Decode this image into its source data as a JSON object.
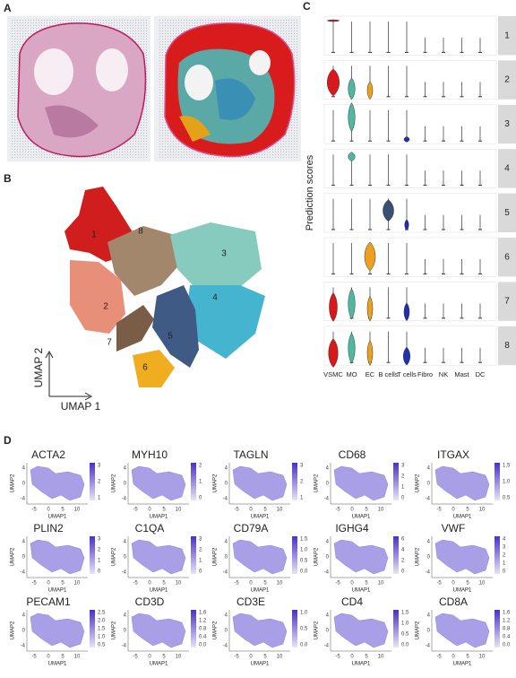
{
  "panels": {
    "a": "A",
    "b": "B",
    "c": "C",
    "d": "D"
  },
  "umap": {
    "x_label": "UMAP 1",
    "y_label": "UMAP 2",
    "clusters": [
      "1",
      "2",
      "3",
      "4",
      "5",
      "6",
      "7",
      "8"
    ]
  },
  "violin": {
    "y_label": "Prediction scores",
    "cell_types": [
      "VSMC",
      "MO",
      "EC",
      "B cells",
      "T cells",
      "Fibro",
      "NK",
      "Mast",
      "DC"
    ],
    "clusters": [
      "1",
      "2",
      "3",
      "4",
      "5",
      "6",
      "7",
      "8"
    ]
  },
  "feature_axes": {
    "x_label": "UMAP1",
    "y_label": "UMAP2",
    "x_ticks": [
      "-5",
      "0",
      "5",
      "10"
    ],
    "y_ticks": [
      "4",
      "0",
      "-4"
    ]
  },
  "features": [
    {
      "gene": "ACTA2",
      "colorbar": [
        "3",
        "2",
        "1"
      ]
    },
    {
      "gene": "MYH10",
      "colorbar": [
        "2",
        "1",
        "0"
      ]
    },
    {
      "gene": "TAGLN",
      "colorbar": [
        "3",
        "2",
        "1"
      ]
    },
    {
      "gene": "CD68",
      "colorbar": [
        "3",
        "2",
        "1",
        "0"
      ]
    },
    {
      "gene": "ITGAX",
      "colorbar": [
        "1.5",
        "1.0",
        "0.5"
      ]
    },
    {
      "gene": "PLIN2",
      "colorbar": [
        "3",
        "2",
        "1",
        "0"
      ]
    },
    {
      "gene": "C1QA",
      "colorbar": [
        "3",
        "2",
        "1",
        "0"
      ]
    },
    {
      "gene": "CD79A",
      "colorbar": [
        "1.5",
        "1.0",
        "0.5",
        "0.0"
      ]
    },
    {
      "gene": "IGHG4",
      "colorbar": [
        "6",
        "4",
        "2",
        "0"
      ]
    },
    {
      "gene": "VWF",
      "colorbar": [
        "4",
        "3",
        "2",
        "1",
        "0"
      ]
    },
    {
      "gene": "PECAM1",
      "colorbar": [
        "2.5",
        "2.0",
        "1.5",
        "1.0",
        "0.5"
      ]
    },
    {
      "gene": "CD3D",
      "colorbar": [
        "1.6",
        "1.2",
        "0.8",
        "0.4",
        "0.0"
      ]
    },
    {
      "gene": "CD3E",
      "colorbar": [
        "1.0",
        "0.5",
        "0.0"
      ]
    },
    {
      "gene": "CD4",
      "colorbar": [
        "1.5",
        "1.0",
        "0.5",
        "0.0"
      ]
    },
    {
      "gene": "CD8A",
      "colorbar": [
        "1.6",
        "1.2",
        "0.8",
        "0.4",
        "0.0"
      ]
    }
  ]
}
